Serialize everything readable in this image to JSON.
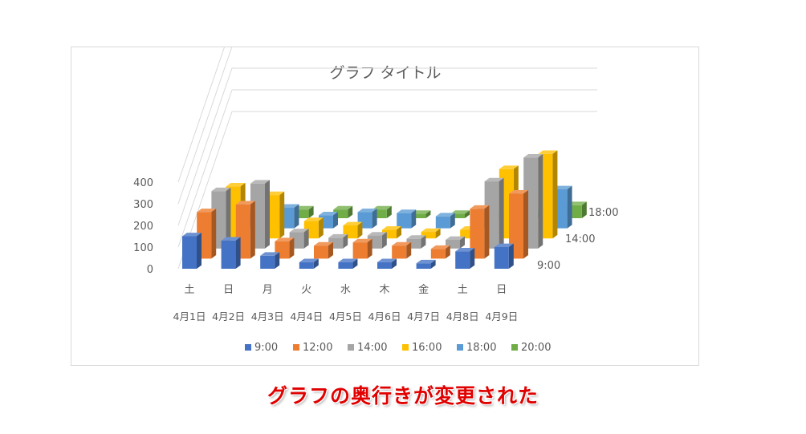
{
  "caption": "グラフの奥行きが変更された",
  "chart_data": {
    "type": "bar",
    "subtype": "3d-column",
    "title": "グラフ タイトル",
    "categories": [
      "土",
      "日",
      "月",
      "火",
      "水",
      "木",
      "金",
      "土",
      "日"
    ],
    "dates": [
      "4月1日",
      "4月2日",
      "4月3日",
      "4月4日",
      "4月5日",
      "4月6日",
      "4月7日",
      "4月8日",
      "4月9日"
    ],
    "depth_axis_labels": [
      "9:00",
      "14:00",
      "18:00"
    ],
    "yticks": [
      0,
      100,
      200,
      300,
      400
    ],
    "ylim": [
      0,
      400
    ],
    "legend_position": "bottom",
    "series": [
      {
        "name": "9:00",
        "color": "#4472c4",
        "values": [
          150,
          130,
          60,
          30,
          30,
          30,
          25,
          80,
          100
        ]
      },
      {
        "name": "12:00",
        "color": "#ed7d31",
        "values": [
          215,
          250,
          80,
          60,
          75,
          60,
          45,
          230,
          300
        ]
      },
      {
        "name": "14:00",
        "color": "#a5a5a5",
        "values": [
          265,
          300,
          75,
          50,
          60,
          45,
          40,
          310,
          420
        ]
      },
      {
        "name": "16:00",
        "color": "#ffc000",
        "values": [
          240,
          200,
          80,
          60,
          40,
          30,
          40,
          320,
          390
        ]
      },
      {
        "name": "18:00",
        "color": "#5b9bd5",
        "values": [
          70,
          95,
          60,
          75,
          70,
          55,
          80,
          75,
          180
        ]
      },
      {
        "name": "20:00",
        "color": "#70ad47",
        "values": [
          55,
          40,
          40,
          40,
          20,
          20,
          20,
          20,
          60
        ]
      }
    ]
  }
}
